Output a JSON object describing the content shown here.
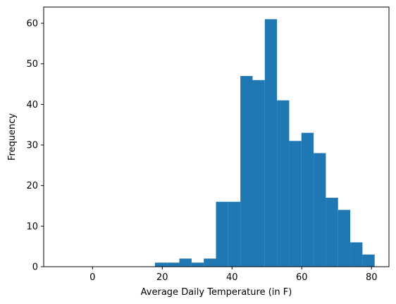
{
  "chart_data": {
    "type": "bar",
    "subtype": "histogram",
    "title": "",
    "xlabel": "Average Daily Temperature (in F)",
    "ylabel": "Frequency",
    "xlim": [
      -14,
      85
    ],
    "ylim": [
      0,
      64
    ],
    "xticks": [
      0,
      20,
      40,
      60,
      80
    ],
    "yticks": [
      0,
      10,
      20,
      30,
      40,
      50,
      60
    ],
    "grid": false,
    "legend": "none",
    "bar_color": "#1f77b4",
    "bins": [
      {
        "x0": -10.1,
        "x1": -6.6,
        "count": 0
      },
      {
        "x0": -6.6,
        "x1": -3.1,
        "count": 0
      },
      {
        "x0": -3.1,
        "x1": 0.4,
        "count": 0
      },
      {
        "x0": 0.4,
        "x1": 3.9,
        "count": 0
      },
      {
        "x0": 3.9,
        "x1": 7.4,
        "count": 0
      },
      {
        "x0": 7.4,
        "x1": 10.9,
        "count": 0
      },
      {
        "x0": 10.9,
        "x1": 14.4,
        "count": 0
      },
      {
        "x0": 14.4,
        "x1": 17.9,
        "count": 0
      },
      {
        "x0": 17.9,
        "x1": 21.4,
        "count": 1
      },
      {
        "x0": 21.4,
        "x1": 24.9,
        "count": 1
      },
      {
        "x0": 24.9,
        "x1": 28.4,
        "count": 2
      },
      {
        "x0": 28.4,
        "x1": 31.9,
        "count": 1
      },
      {
        "x0": 31.9,
        "x1": 35.4,
        "count": 2
      },
      {
        "x0": 35.4,
        "x1": 38.9,
        "count": 16
      },
      {
        "x0": 38.9,
        "x1": 42.4,
        "count": 16
      },
      {
        "x0": 42.4,
        "x1": 45.9,
        "count": 47
      },
      {
        "x0": 45.9,
        "x1": 49.4,
        "count": 46
      },
      {
        "x0": 49.4,
        "x1": 52.9,
        "count": 61
      },
      {
        "x0": 52.9,
        "x1": 56.4,
        "count": 41
      },
      {
        "x0": 56.4,
        "x1": 59.9,
        "count": 31
      },
      {
        "x0": 59.9,
        "x1": 63.4,
        "count": 33
      },
      {
        "x0": 63.4,
        "x1": 66.9,
        "count": 28
      },
      {
        "x0": 66.9,
        "x1": 70.4,
        "count": 17
      },
      {
        "x0": 70.4,
        "x1": 73.9,
        "count": 14
      },
      {
        "x0": 73.9,
        "x1": 77.4,
        "count": 6
      },
      {
        "x0": 77.4,
        "x1": 80.9,
        "count": 3
      }
    ]
  }
}
